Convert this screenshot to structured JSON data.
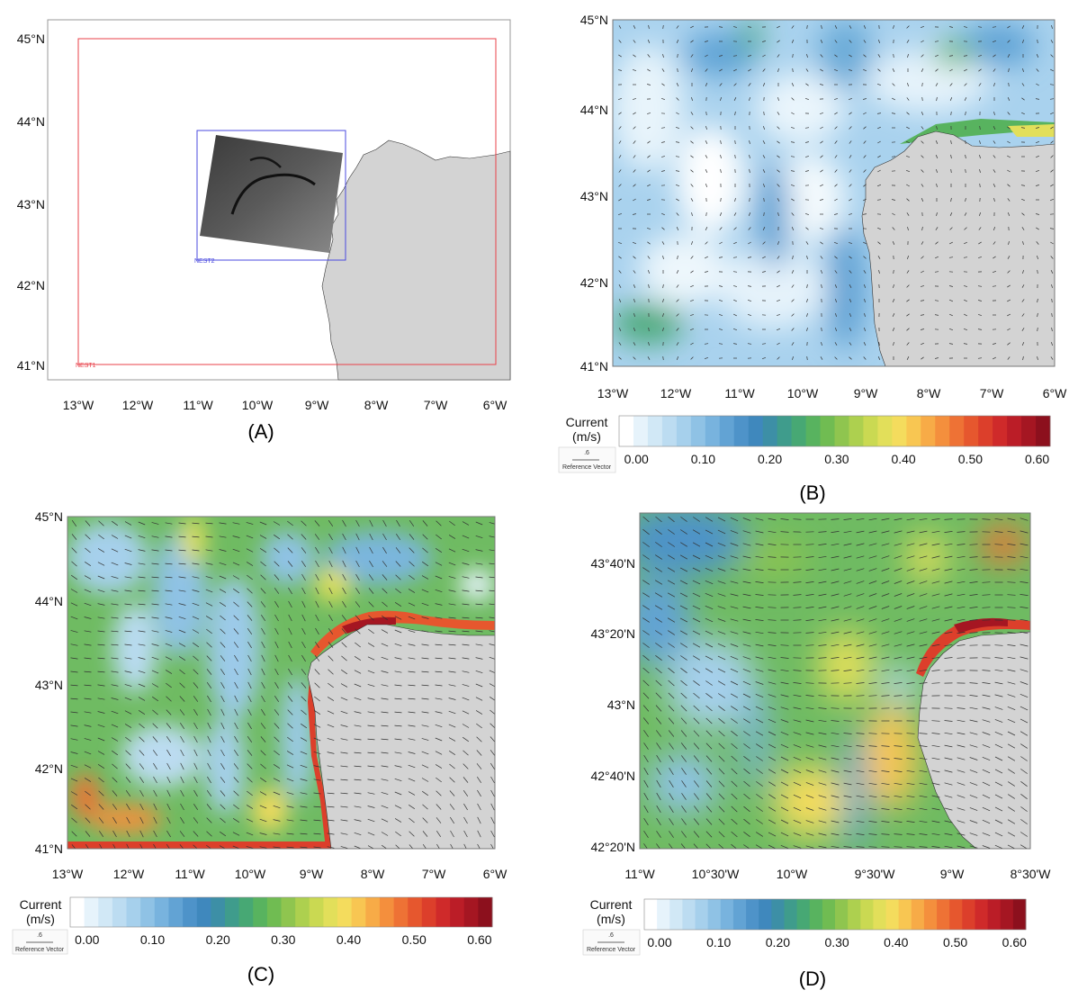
{
  "panels": {
    "a": {
      "caption": "(A)",
      "lat_labels": [
        "45°N",
        "44°N",
        "43°N",
        "42°N",
        "41°N"
      ],
      "lon_labels": [
        "13°W",
        "12°W",
        "11°W",
        "10°W",
        "9°W",
        "8°W",
        "7°W",
        "6°W"
      ],
      "nest1_label": "NEST1",
      "nest2_label": "NEST2",
      "nest1_color": "#e8404a",
      "nest2_color": "#4a4adf"
    },
    "b": {
      "caption": "(B)",
      "lat_labels": [
        "45°N",
        "44°N",
        "43°N",
        "42°N",
        "41°N"
      ],
      "lon_labels": [
        "13°W",
        "12°W",
        "11°W",
        "10°W",
        "9°W",
        "8°W",
        "7°W",
        "6°W"
      ],
      "colorbar_title": "Current",
      "colorbar_unit": "(m/s)",
      "ref_value": ".6",
      "ref_label": "Reference Vector",
      "colorbar_ticks": [
        "0.00",
        "0.10",
        "0.20",
        "0.30",
        "0.40",
        "0.50",
        "0.60"
      ]
    },
    "c": {
      "caption": "(C)",
      "lat_labels": [
        "45°N",
        "44°N",
        "43°N",
        "42°N",
        "41°N"
      ],
      "lon_labels": [
        "13°W",
        "12°W",
        "11°W",
        "10°W",
        "9°W",
        "8°W",
        "7°W",
        "6°W"
      ],
      "colorbar_title": "Current",
      "colorbar_unit": "(m/s)",
      "ref_value": ".6",
      "ref_label": "Reference Vector",
      "colorbar_ticks": [
        "0.00",
        "0.10",
        "0.20",
        "0.30",
        "0.40",
        "0.50",
        "0.60"
      ]
    },
    "d": {
      "caption": "(D)",
      "lat_labels": [
        "43°40'N",
        "43°20'N",
        "43°N",
        "42°40'N",
        "42°20'N"
      ],
      "lon_labels": [
        "11°W",
        "10°30'W",
        "10°W",
        "9°30'W",
        "9°W",
        "8°30'W"
      ],
      "colorbar_title": "Current",
      "colorbar_unit": "(m/s)",
      "ref_value": ".6",
      "ref_label": "Reference Vector",
      "colorbar_ticks": [
        "0.00",
        "0.10",
        "0.20",
        "0.30",
        "0.40",
        "0.50",
        "0.60"
      ]
    }
  },
  "colorbar_colors": [
    "#ffffff",
    "#e6f3fb",
    "#d1e8f6",
    "#bcdcf1",
    "#a6d0ec",
    "#8fc2e5",
    "#78b3de",
    "#62a3d4",
    "#4e93c9",
    "#3f88bd",
    "#3d8fa6",
    "#3f9c8c",
    "#47a874",
    "#58b35f",
    "#70bc52",
    "#8fc54f",
    "#add04f",
    "#cad952",
    "#e2df5a",
    "#f4dc5d",
    "#f8c652",
    "#f7ab47",
    "#f48f3d",
    "#ee7235",
    "#e6572e",
    "#dc3f2b",
    "#cf2a2a",
    "#bb1d27",
    "#a51622",
    "#8c101d"
  ],
  "land_color": "#d3d3d3"
}
